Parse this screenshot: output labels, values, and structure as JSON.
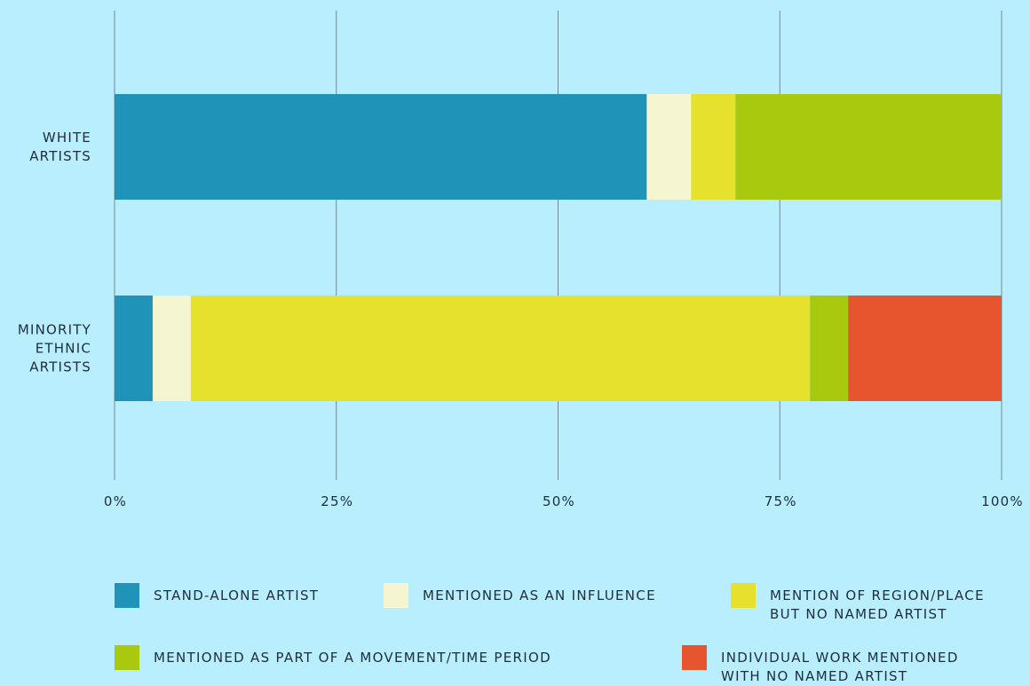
{
  "chart_data": {
    "type": "bar",
    "orientation": "horizontal",
    "stacked": true,
    "categories": [
      "WHITE\nARTISTS",
      "MINORITY\nETHNIC\nARTISTS"
    ],
    "series": [
      {
        "name": "STAND-ALONE ARTIST",
        "color": "#1f93b8",
        "values": [
          60,
          4.3
        ]
      },
      {
        "name": "MENTIONED AS AN INFLUENCE",
        "color": "#f5f5d2",
        "values": [
          5,
          4.3
        ]
      },
      {
        "name": "MENTION OF REGION/PLACE\nBUT NO NAMED ARTIST",
        "color": "#e6e12c",
        "values": [
          5,
          69.8
        ]
      },
      {
        "name": "MENTIONED AS PART OF A MOVEMENT/TIME PERIOD",
        "color": "#a8c90e",
        "values": [
          30,
          4.3
        ]
      },
      {
        "name": "INDIVIDUAL WORK MENTIONED\nWITH NO NAMED ARTIST",
        "color": "#e6552d",
        "values": [
          0,
          17.3
        ]
      }
    ],
    "xlim": [
      0,
      100
    ],
    "x_ticks": [
      "0%",
      "25%",
      "50%",
      "75%",
      "100%"
    ],
    "grid": true,
    "legend_position": "bottom"
  }
}
